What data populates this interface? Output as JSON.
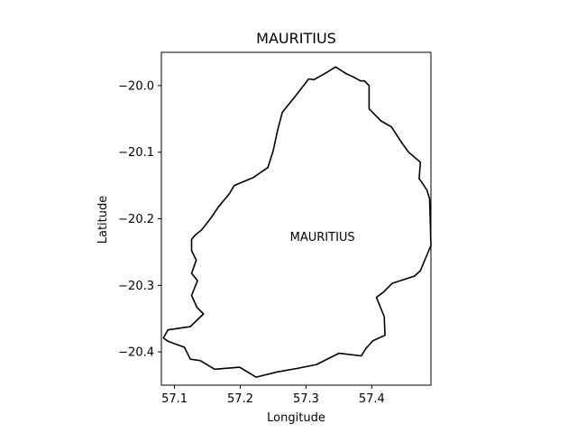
{
  "chart_data": {
    "type": "map",
    "title": "MAURITIUS",
    "xlabel": "Longitude",
    "ylabel": "Latitude",
    "xlim": [
      57.08,
      57.49
    ],
    "ylim": [
      -20.45,
      -19.95
    ],
    "x_ticks": [
      {
        "value": 57.1,
        "label": "57.1"
      },
      {
        "value": 57.2,
        "label": "57.2"
      },
      {
        "value": 57.3,
        "label": "57.3"
      },
      {
        "value": 57.4,
        "label": "57.4"
      }
    ],
    "y_ticks": [
      {
        "value": -20.0,
        "label": "−20.0"
      },
      {
        "value": -20.1,
        "label": "−20.1"
      },
      {
        "value": -20.2,
        "label": "−20.2"
      },
      {
        "value": -20.3,
        "label": "−20.3"
      },
      {
        "value": -20.4,
        "label": "−20.4"
      }
    ],
    "grid": false,
    "outline_color": "#000000",
    "annotation": {
      "text": "MAURITIUS",
      "lon": 57.325,
      "lat": -20.227
    },
    "outline": [
      [
        57.304,
        -19.99
      ],
      [
        57.312,
        -19.991
      ],
      [
        57.332,
        -19.98
      ],
      [
        57.345,
        -19.972
      ],
      [
        57.35,
        -19.975
      ],
      [
        57.361,
        -19.982
      ],
      [
        57.372,
        -19.987
      ],
      [
        57.383,
        -19.993
      ],
      [
        57.389,
        -19.993
      ],
      [
        57.396,
        -20.0
      ],
      [
        57.396,
        -20.035
      ],
      [
        57.414,
        -20.053
      ],
      [
        57.43,
        -20.062
      ],
      [
        57.445,
        -20.085
      ],
      [
        57.456,
        -20.1
      ],
      [
        57.474,
        -20.115
      ],
      [
        57.472,
        -20.14
      ],
      [
        57.476,
        -20.145
      ],
      [
        57.484,
        -20.157
      ],
      [
        57.488,
        -20.17
      ],
      [
        57.49,
        -20.24
      ],
      [
        57.474,
        -20.278
      ],
      [
        57.465,
        -20.286
      ],
      [
        57.431,
        -20.297
      ],
      [
        57.418,
        -20.31
      ],
      [
        57.407,
        -20.318
      ],
      [
        57.419,
        -20.347
      ],
      [
        57.42,
        -20.375
      ],
      [
        57.402,
        -20.383
      ],
      [
        57.391,
        -20.395
      ],
      [
        57.384,
        -20.406
      ],
      [
        57.35,
        -20.402
      ],
      [
        57.316,
        -20.419
      ],
      [
        57.285,
        -20.425
      ],
      [
        57.257,
        -20.43
      ],
      [
        57.224,
        -20.438
      ],
      [
        57.199,
        -20.423
      ],
      [
        57.161,
        -20.426
      ],
      [
        57.139,
        -20.413
      ],
      [
        57.124,
        -20.411
      ],
      [
        57.115,
        -20.393
      ],
      [
        57.098,
        -20.387
      ],
      [
        57.09,
        -20.384
      ],
      [
        57.083,
        -20.379
      ],
      [
        57.09,
        -20.367
      ],
      [
        57.124,
        -20.362
      ],
      [
        57.144,
        -20.343
      ],
      [
        57.134,
        -20.333
      ],
      [
        57.126,
        -20.315
      ],
      [
        57.135,
        -20.293
      ],
      [
        57.126,
        -20.282
      ],
      [
        57.133,
        -20.262
      ],
      [
        57.126,
        -20.248
      ],
      [
        57.126,
        -20.231
      ],
      [
        57.132,
        -20.224
      ],
      [
        57.141,
        -20.217
      ],
      [
        57.149,
        -20.207
      ],
      [
        57.156,
        -20.198
      ],
      [
        57.167,
        -20.182
      ],
      [
        57.183,
        -20.163
      ],
      [
        57.191,
        -20.15
      ],
      [
        57.22,
        -20.138
      ],
      [
        57.242,
        -20.123
      ],
      [
        57.25,
        -20.098
      ],
      [
        57.257,
        -20.066
      ],
      [
        57.264,
        -20.04
      ],
      [
        57.282,
        -20.018
      ],
      [
        57.304,
        -19.99
      ]
    ]
  }
}
